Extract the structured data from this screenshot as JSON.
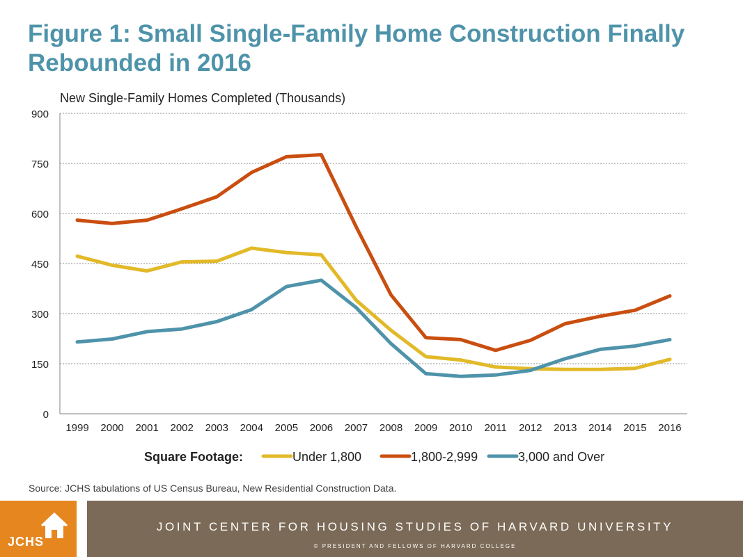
{
  "page": {
    "title": "Figure 1: Small Single-Family Home Construction Finally Rebounded in 2016",
    "source": "Source: JCHS tabulations of US Census Bureau, New Residential Construction Data."
  },
  "footer": {
    "logo_text": "JCHS",
    "org_name": "JOINT CENTER FOR HOUSING STUDIES OF HARVARD UNIVERSITY",
    "copyright": "© PRESIDENT AND FELLOWS OF HARVARD COLLEGE"
  },
  "chart_data": {
    "type": "line",
    "title": "Figure 1: Small Single-Family Home Construction Finally Rebounded in 2016",
    "ylabel": "New Single-Family Homes Completed (Thousands)",
    "xlabel": "",
    "ylim": [
      0,
      900
    ],
    "yticks": [
      0,
      150,
      300,
      450,
      600,
      750,
      900
    ],
    "grid": true,
    "legend_title": "Square Footage:",
    "legend_position": "bottom",
    "x": [
      "1999",
      "2000",
      "2001",
      "2002",
      "2003",
      "2004",
      "2005",
      "2006",
      "2007",
      "2008",
      "2009",
      "2010",
      "2011",
      "2012",
      "2013",
      "2014",
      "2015",
      "2016"
    ],
    "series": [
      {
        "name": "Under 1,800",
        "color": "#e2b928",
        "values": [
          472,
          445,
          428,
          455,
          457,
          496,
          483,
          476,
          340,
          250,
          171,
          161,
          140,
          135,
          133,
          133,
          136,
          163
        ]
      },
      {
        "name": "1,800-2,999",
        "color": "#c94e10",
        "values": [
          580,
          570,
          580,
          614,
          650,
          723,
          770,
          776,
          560,
          356,
          228,
          222,
          190,
          220,
          270,
          292,
          310,
          353
        ]
      },
      {
        "name": "3,000 and Over",
        "color": "#4e93aa",
        "values": [
          215,
          224,
          246,
          254,
          276,
          312,
          381,
          400,
          318,
          210,
          120,
          112,
          116,
          130,
          165,
          193,
          203,
          222
        ]
      }
    ]
  }
}
